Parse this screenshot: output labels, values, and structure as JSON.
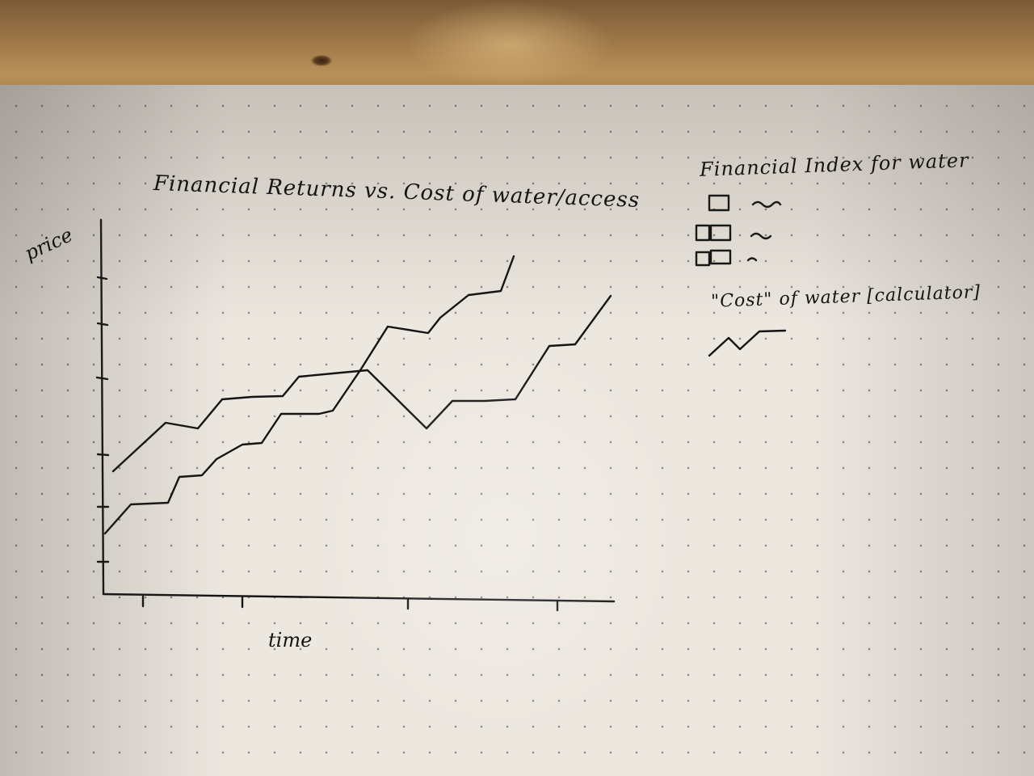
{
  "title": "Financial Returns vs. Cost of water/access",
  "ylabel": "price",
  "xlabel": "time",
  "legend": {
    "title": "Financial Index for water",
    "cost_label": "\"Cost\" of water [calculator]"
  },
  "ink_color": "#141414"
}
